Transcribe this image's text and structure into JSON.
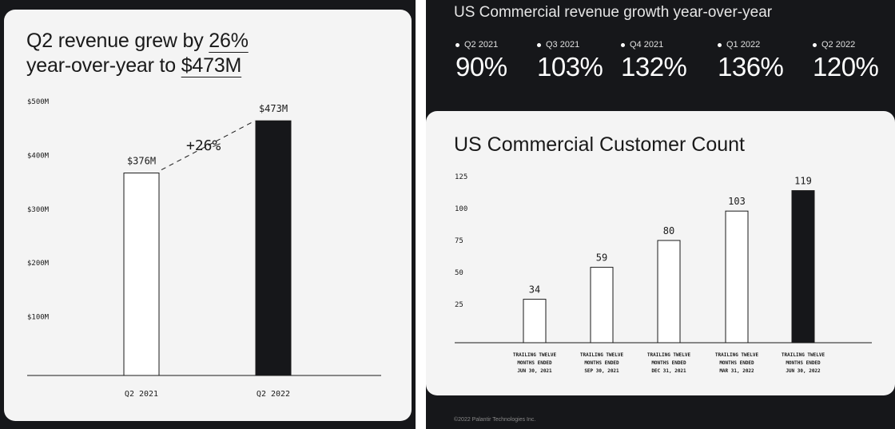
{
  "left": {
    "headline_line1_prefix": "Q2 revenue grew by ",
    "headline_line1_emph": "26%",
    "headline_line2_prefix": "year-over-year to ",
    "headline_line2_emph": "$473M"
  },
  "growth": {
    "title": "US Commercial revenue growth year-over-year",
    "items": [
      {
        "label": "Q2 2021",
        "value": "90%"
      },
      {
        "label": "Q3 2021",
        "value": "103%"
      },
      {
        "label": "Q4 2021",
        "value": "132%"
      },
      {
        "label": "Q1 2022",
        "value": "136%"
      },
      {
        "label": "Q2 2022",
        "value": "120%"
      }
    ]
  },
  "right": {
    "title": "US Commercial Customer Count"
  },
  "footer": "©2022 Palantir Technologies Inc.",
  "chart_data": [
    {
      "type": "bar",
      "title": "Q2 revenue grew by 26% year-over-year to $473M",
      "categories": [
        "Q2 2021",
        "Q2 2022"
      ],
      "values": [
        376,
        473
      ],
      "value_labels": [
        "$376M",
        "$473M"
      ],
      "y_ticks": [
        {
          "value": 100,
          "label": "$100M"
        },
        {
          "value": 200,
          "label": "$200M"
        },
        {
          "value": 300,
          "label": "$300M"
        },
        {
          "value": 400,
          "label": "$400M"
        },
        {
          "value": 500,
          "label": "$500M"
        }
      ],
      "ylim": [
        0,
        500
      ],
      "annotation": "+26%",
      "bar_styles": [
        "outline",
        "filled"
      ],
      "grid": false
    },
    {
      "type": "bar",
      "title": "US Commercial Customer Count",
      "categories": [
        [
          "TRAILING TWELVE",
          "MONTHS ENDED",
          "JUN 30, 2021"
        ],
        [
          "TRAILING TWELVE",
          "MONTHS ENDED",
          "SEP 30, 2021"
        ],
        [
          "TRAILING TWELVE",
          "MONTHS ENDED",
          "DEC 31, 2021"
        ],
        [
          "TRAILING TWELVE",
          "MONTHS ENDED",
          "MAR 31, 2022"
        ],
        [
          "TRAILING TWELVE",
          "MONTHS ENDED",
          "JUN 30, 2022"
        ]
      ],
      "values": [
        34,
        59,
        80,
        103,
        119
      ],
      "y_ticks": [
        25,
        50,
        75,
        100,
        125
      ],
      "ylim": [
        0,
        125
      ],
      "bar_styles": [
        "outline",
        "outline",
        "outline",
        "outline",
        "filled"
      ],
      "grid": false
    }
  ],
  "colors": {
    "dark": "#16171a",
    "card": "#f4f4f4",
    "bar_fill": "#16171a",
    "bar_outline": "#1a1a1a"
  }
}
